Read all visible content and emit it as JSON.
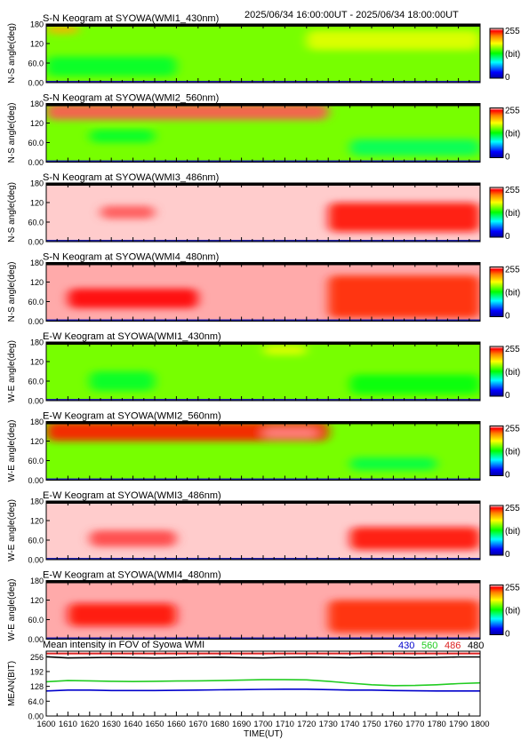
{
  "header": {
    "time_range": "2025/06/34 16:00:00UT - 2025/06/34 18:00:00UT"
  },
  "chart_data": [
    {
      "type": "heatmap",
      "title": "S-N Keogram at SYOWA(WMI1_430nm)",
      "ylabel": "N-S angle(deg)",
      "yticks": [
        "0.00",
        "60.0",
        "120",
        "180"
      ],
      "ylim": [
        0,
        180
      ],
      "colorbar": {
        "max_label": "255",
        "unit_label": "(bit)",
        "min_label": "0"
      },
      "base_level": 150,
      "features": [
        {
          "time": [
            1600,
            1615
          ],
          "angle": [
            150,
            175
          ],
          "level": 200
        },
        {
          "time": [
            1600,
            1660
          ],
          "angle": [
            20,
            80
          ],
          "level": 120
        },
        {
          "time": [
            1720,
            1800
          ],
          "angle": [
            100,
            160
          ],
          "level": 170
        }
      ]
    },
    {
      "type": "heatmap",
      "title": "S-N Keogram at SYOWA(WMI2_560nm)",
      "ylabel": "N-S angle(deg)",
      "yticks": [
        "0.00",
        "60.0",
        "120",
        "180"
      ],
      "ylim": [
        0,
        180
      ],
      "colorbar": {
        "max_label": "255",
        "unit_label": "(bit)",
        "min_label": "0"
      },
      "base_level": 150,
      "features": [
        {
          "time": [
            1600,
            1730
          ],
          "angle": [
            130,
            180
          ],
          "level": 245
        },
        {
          "time": [
            1620,
            1650
          ],
          "angle": [
            60,
            100
          ],
          "level": 120
        },
        {
          "time": [
            1740,
            1800
          ],
          "angle": [
            20,
            70
          ],
          "level": 110
        }
      ]
    },
    {
      "type": "heatmap",
      "title": "S-N Keogram at SYOWA(WMI3_486nm)",
      "ylabel": "N-S angle(deg)",
      "yticks": [
        "0.00",
        "60.0",
        "120",
        "180"
      ],
      "ylim": [
        0,
        180
      ],
      "colorbar": {
        "max_label": "255",
        "unit_label": "(bit)",
        "min_label": "0"
      },
      "base_level": 252,
      "features": [
        {
          "time": [
            1625,
            1650
          ],
          "angle": [
            70,
            110
          ],
          "level": 245
        },
        {
          "time": [
            1730,
            1800
          ],
          "angle": [
            30,
            120
          ],
          "level": 238
        }
      ]
    },
    {
      "type": "heatmap",
      "title": "S-N Keogram at SYOWA(WMI4_480nm)",
      "ylabel": "N-S angle(deg)",
      "yticks": [
        "0.00",
        "60.0",
        "120",
        "180"
      ],
      "ylim": [
        0,
        180
      ],
      "colorbar": {
        "max_label": "255",
        "unit_label": "(bit)",
        "min_label": "0"
      },
      "base_level": 250,
      "features": [
        {
          "time": [
            1610,
            1670
          ],
          "angle": [
            40,
            100
          ],
          "level": 240
        },
        {
          "time": [
            1730,
            1800
          ],
          "angle": [
            10,
            140
          ],
          "level": 232
        }
      ]
    },
    {
      "type": "heatmap",
      "title": "E-W Keogram at SYOWA(WMI1_430nm)",
      "ylabel": "W-E angle(deg)",
      "yticks": [
        "0.00",
        "60.0",
        "120",
        "180"
      ],
      "ylim": [
        0,
        180
      ],
      "colorbar": {
        "max_label": "255",
        "unit_label": "(bit)",
        "min_label": "0"
      },
      "base_level": 150,
      "features": [
        {
          "time": [
            1620,
            1650
          ],
          "angle": [
            30,
            90
          ],
          "level": 120
        },
        {
          "time": [
            1700,
            1720
          ],
          "angle": [
            140,
            170
          ],
          "level": 170
        },
        {
          "time": [
            1740,
            1800
          ],
          "angle": [
            20,
            80
          ],
          "level": 125
        }
      ]
    },
    {
      "type": "heatmap",
      "title": "E-W Keogram at SYOWA(WMI2_560nm)",
      "ylabel": "W-E angle(deg)",
      "yticks": [
        "0.00",
        "60.0",
        "120",
        "180"
      ],
      "ylim": [
        0,
        180
      ],
      "colorbar": {
        "max_label": "255",
        "unit_label": "(bit)",
        "min_label": "0"
      },
      "base_level": 150,
      "features": [
        {
          "time": [
            1600,
            1730
          ],
          "angle": [
            120,
            180
          ],
          "level": 235
        },
        {
          "time": [
            1700,
            1725
          ],
          "angle": [
            130,
            160
          ],
          "level": 248
        },
        {
          "time": [
            1740,
            1780
          ],
          "angle": [
            30,
            70
          ],
          "level": 115
        }
      ]
    },
    {
      "type": "heatmap",
      "title": "E-W Keogram at SYOWA(WMI3_486nm)",
      "ylabel": "W-E angle(deg)",
      "yticks": [
        "0.00",
        "60.0",
        "120",
        "180"
      ],
      "ylim": [
        0,
        180
      ],
      "colorbar": {
        "max_label": "255",
        "unit_label": "(bit)",
        "min_label": "0"
      },
      "base_level": 252,
      "features": [
        {
          "time": [
            1620,
            1660
          ],
          "angle": [
            40,
            90
          ],
          "level": 244
        },
        {
          "time": [
            1740,
            1800
          ],
          "angle": [
            30,
            100
          ],
          "level": 238
        }
      ]
    },
    {
      "type": "heatmap",
      "title": "E-W Keogram at SYOWA(WMI4_480nm)",
      "ylabel": "W-E angle(deg)",
      "yticks": [
        "0.00",
        "60.0",
        "120",
        "180"
      ],
      "ylim": [
        0,
        180
      ],
      "colorbar": {
        "max_label": "255",
        "unit_label": "(bit)",
        "min_label": "0"
      },
      "base_level": 250,
      "features": [
        {
          "time": [
            1610,
            1660
          ],
          "angle": [
            40,
            110
          ],
          "level": 238
        },
        {
          "time": [
            1730,
            1800
          ],
          "angle": [
            20,
            120
          ],
          "level": 232
        }
      ]
    },
    {
      "type": "line",
      "title": "Mean intensity in FOV of Syowa WMI",
      "ylabel": "MEAN(BIT)",
      "xlabel": "TIME(UT)",
      "x_ticks": [
        "1600",
        "1610",
        "1620",
        "1630",
        "1640",
        "1650",
        "1660",
        "1670",
        "1680",
        "1690",
        "1700",
        "1710",
        "1720",
        "1730",
        "1740",
        "1750",
        "1760",
        "1770",
        "1780",
        "1790",
        "1800"
      ],
      "yticks": [
        "0.00",
        "64.0",
        "128",
        "192",
        "256"
      ],
      "ylim": [
        0,
        280
      ],
      "x": [
        1600,
        1610,
        1620,
        1630,
        1640,
        1650,
        1660,
        1670,
        1680,
        1690,
        1700,
        1710,
        1720,
        1730,
        1740,
        1750,
        1760,
        1770,
        1780,
        1790,
        1800
      ],
      "series": [
        {
          "name": "430",
          "color": "#0000cc",
          "values": [
            108,
            112,
            112,
            110,
            110,
            110,
            111,
            112,
            113,
            114,
            115,
            116,
            116,
            114,
            112,
            112,
            110,
            109,
            108,
            108,
            108
          ]
        },
        {
          "name": "560",
          "color": "#22cc22",
          "values": [
            148,
            153,
            152,
            150,
            149,
            150,
            151,
            152,
            153,
            155,
            157,
            157,
            156,
            150,
            142,
            135,
            131,
            132,
            135,
            140,
            143
          ]
        },
        {
          "name": "486",
          "color": "#dd2222",
          "values": [
            270,
            270,
            270,
            270,
            270,
            270,
            270,
            270,
            270,
            270,
            270,
            270,
            270,
            270,
            270,
            270,
            270,
            270,
            270,
            270,
            270
          ]
        },
        {
          "name": "480",
          "color": "#000000",
          "values": [
            256,
            251,
            252,
            253,
            252,
            251,
            252,
            253,
            254,
            252,
            251,
            253,
            254,
            253,
            252,
            254,
            253,
            252,
            253,
            255,
            255
          ]
        }
      ]
    }
  ]
}
